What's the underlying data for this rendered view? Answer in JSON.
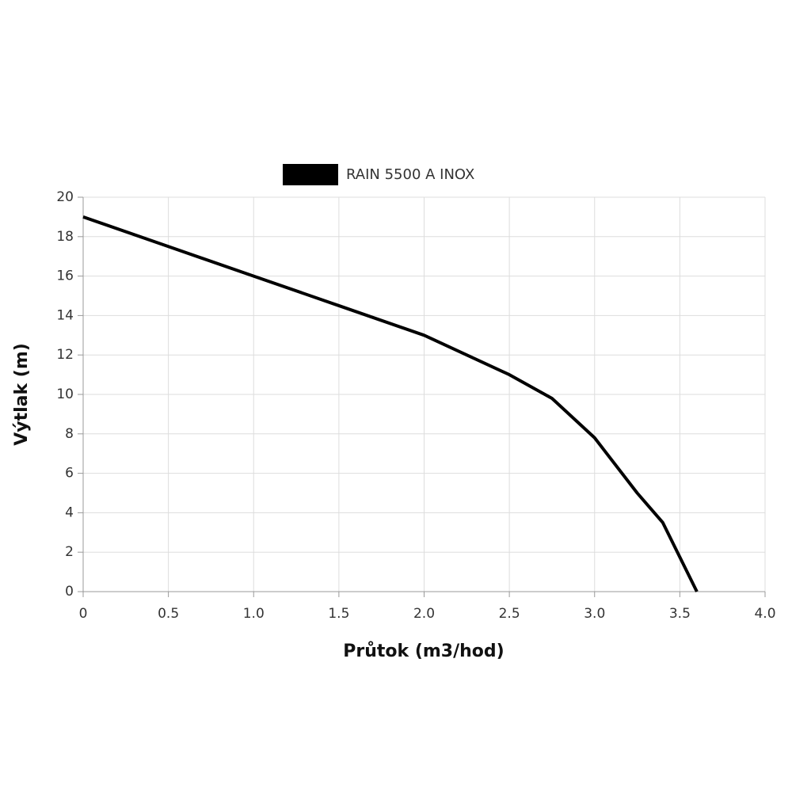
{
  "chart_data": {
    "type": "line",
    "x_label": "Průtok (m3/hod)",
    "y_label": "Výtlak (m)",
    "x": [
      0,
      0.5,
      1,
      1.5,
      2,
      2.5,
      2.75,
      3,
      3.25,
      3.4,
      3.6
    ],
    "series": [
      {
        "name": "RAIN 5500 A INOX",
        "color": "#000000",
        "values": [
          19,
          17.5,
          16,
          14.5,
          13,
          11,
          9.8,
          7.8,
          5,
          3.5,
          0
        ]
      }
    ],
    "xlim": [
      0,
      4
    ],
    "xticks": [
      0,
      0.5,
      {
        "value": 1,
        "label": "1.0"
      },
      1.5,
      {
        "value": 2,
        "label": "2.0"
      },
      2.5,
      {
        "value": 3,
        "label": "3.0"
      },
      3.5,
      {
        "value": 4,
        "label": "4.0"
      }
    ],
    "ylim": [
      0,
      20
    ],
    "yticks": [
      0,
      2,
      4,
      6,
      8,
      10,
      12,
      14,
      16,
      18,
      20
    ],
    "grid": true,
    "legend": "top"
  }
}
